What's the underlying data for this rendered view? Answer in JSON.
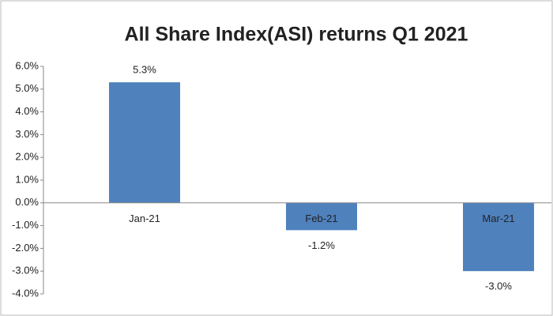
{
  "chart_data": {
    "type": "bar",
    "title": "All Share Index(ASI) returns Q1 2021",
    "categories": [
      "Jan-21",
      "Feb-21",
      "Mar-21"
    ],
    "values": [
      5.3,
      -1.2,
      -3.0
    ],
    "value_labels": [
      "5.3%",
      "-1.2%",
      "-3.0%"
    ],
    "color": "#4f81bd",
    "ylim": [
      -4,
      6
    ],
    "yticks": [
      {
        "value": -4,
        "label": "-4.0%"
      },
      {
        "value": -3,
        "label": "-3.0%"
      },
      {
        "value": -2,
        "label": "-2.0%"
      },
      {
        "value": -1,
        "label": "-1.0%"
      },
      {
        "value": 0,
        "label": "0.0%"
      },
      {
        "value": 1,
        "label": "1.0%"
      },
      {
        "value": 2,
        "label": "2.0%"
      },
      {
        "value": 3,
        "label": "3.0%"
      },
      {
        "value": 4,
        "label": "4.0%"
      },
      {
        "value": 5,
        "label": "5.0%"
      },
      {
        "value": 6,
        "label": "6.0%"
      }
    ],
    "grid": false
  }
}
